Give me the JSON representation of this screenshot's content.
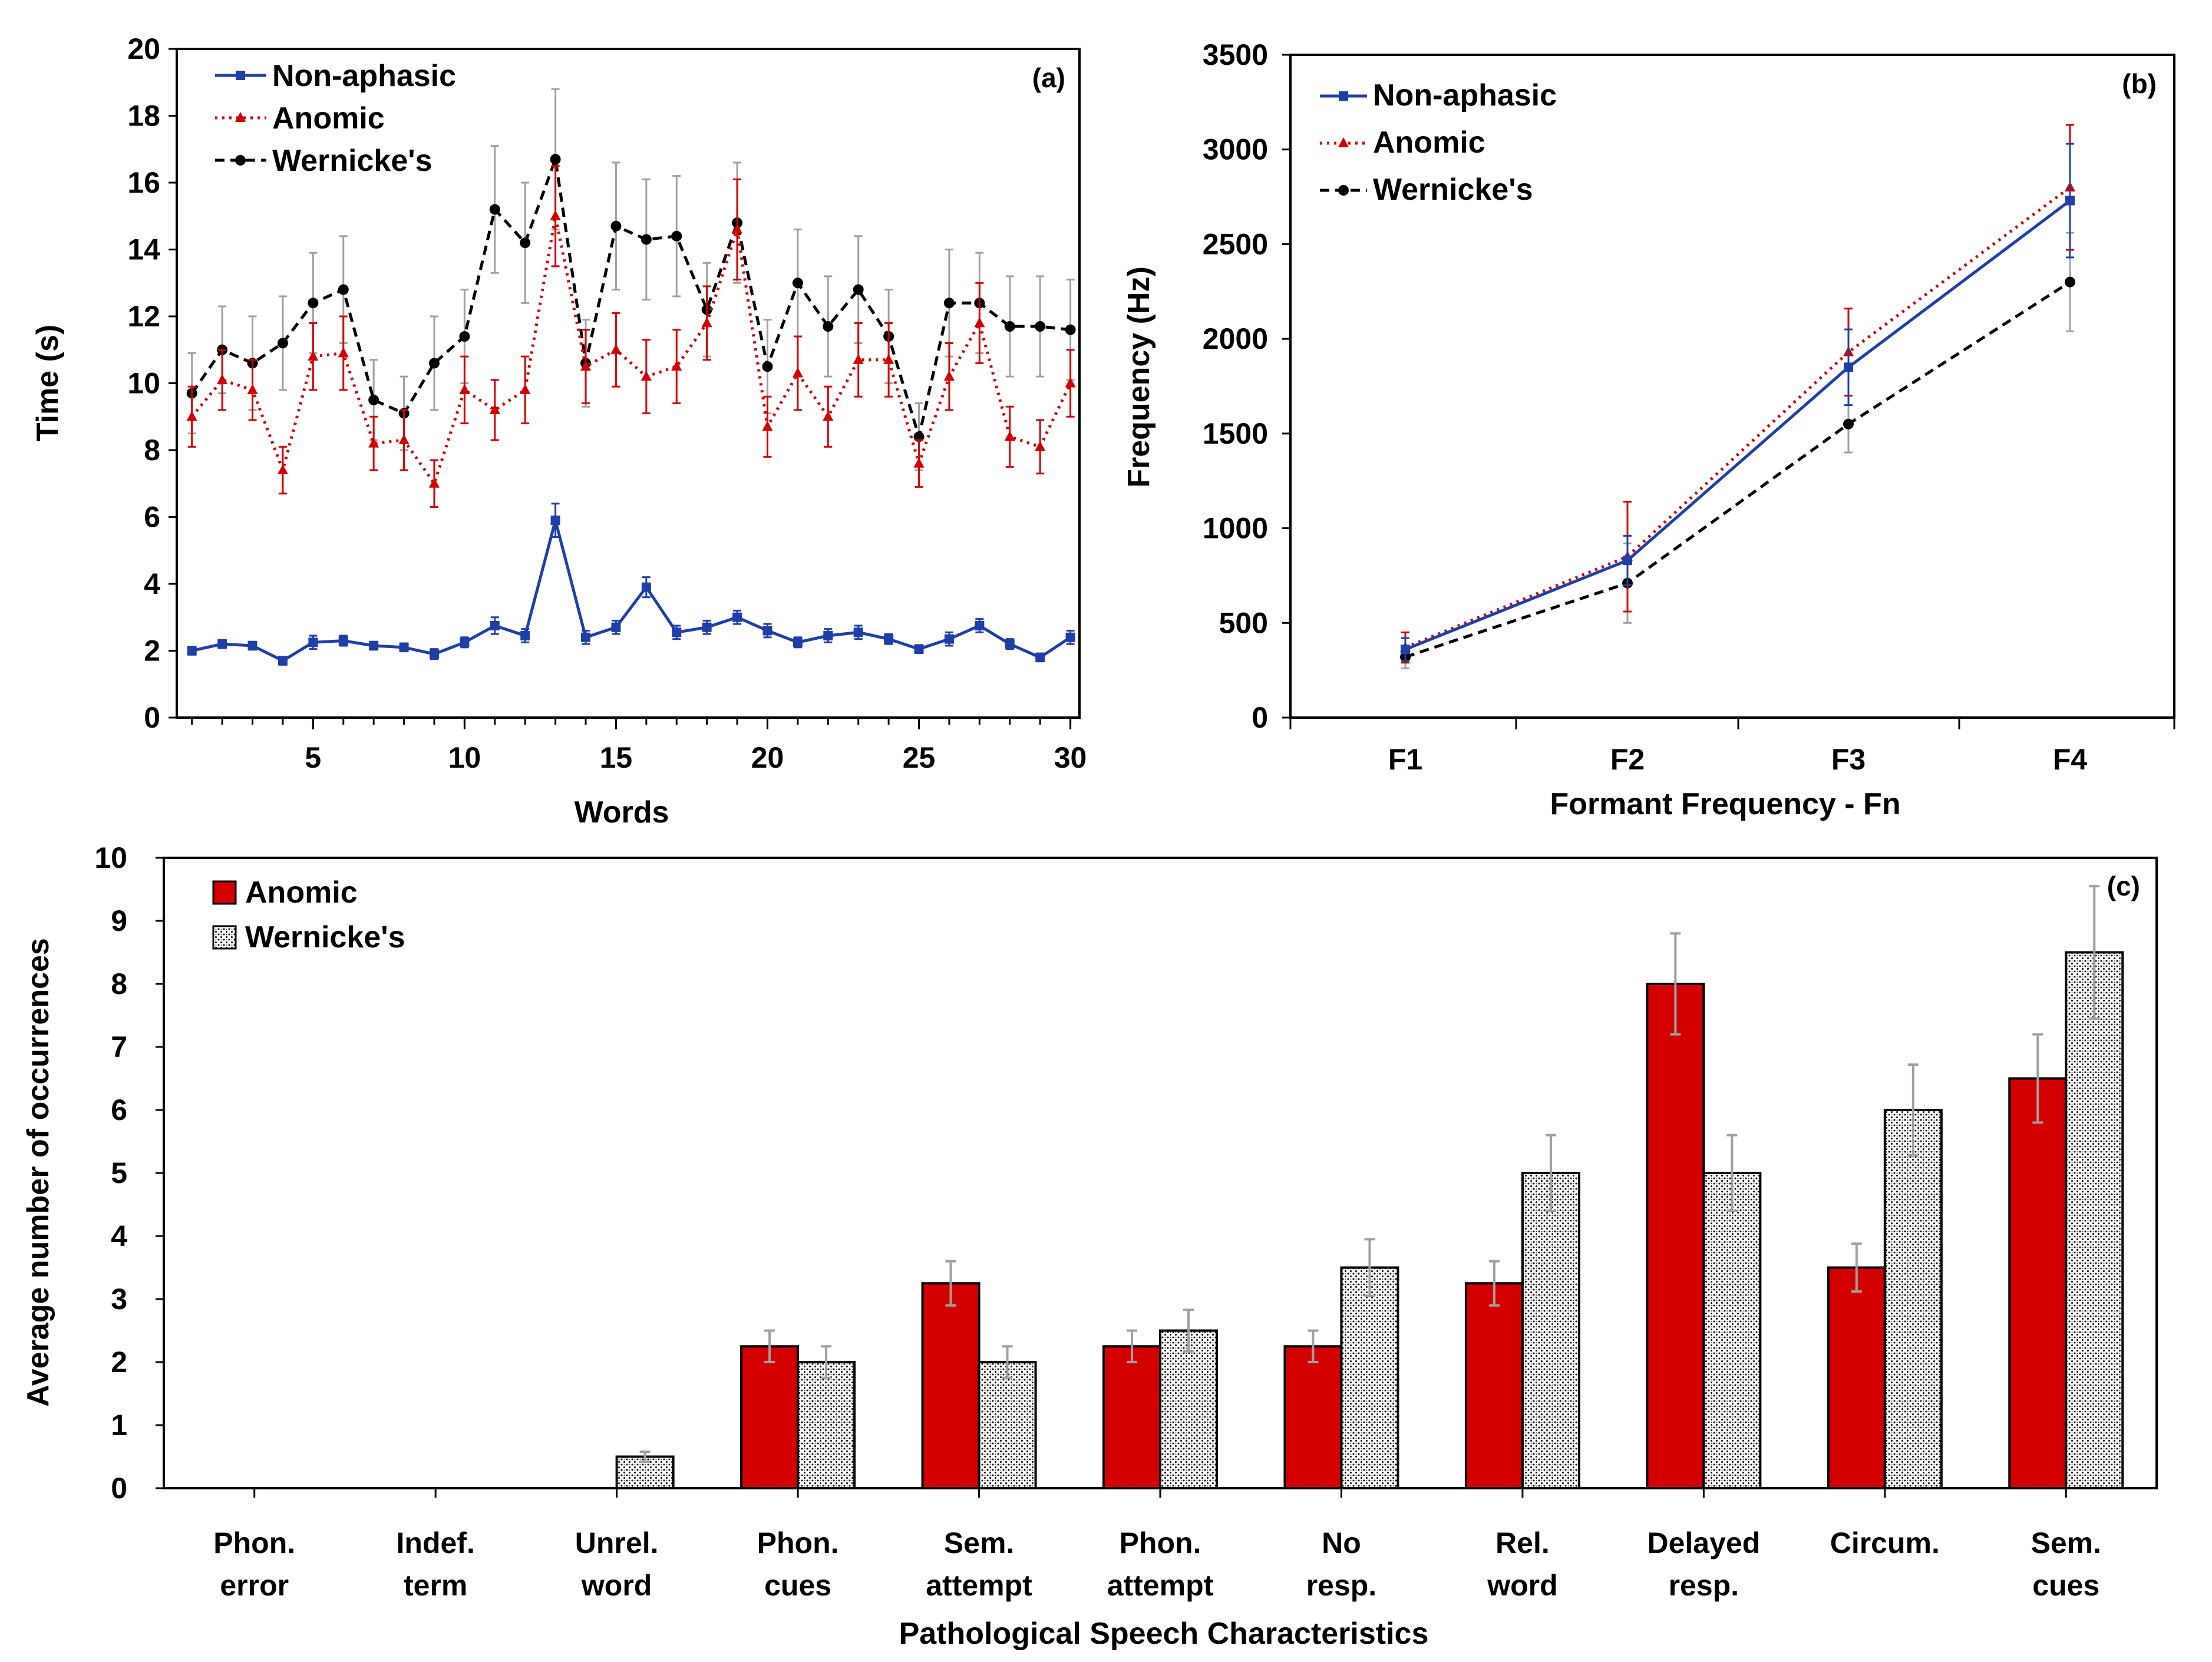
{
  "colors": {
    "non_aphasic": "#1f3fa8",
    "anomic": "#d40000",
    "wernickes": "#000000",
    "error_bar_gray": "#a0a0a0"
  },
  "chart_data": [
    {
      "id": "a",
      "type": "line",
      "panel_label": "(a)",
      "xlabel": "Words",
      "ylabel": "Time (s)",
      "xlim": [
        0.5,
        30.3
      ],
      "ylim": [
        0,
        20
      ],
      "xticks": [
        5,
        10,
        15,
        20,
        25,
        30
      ],
      "yticks": [
        0,
        2,
        4,
        6,
        8,
        10,
        12,
        14,
        16,
        18,
        20
      ],
      "legend": "top-left",
      "x": [
        1,
        2,
        3,
        4,
        5,
        6,
        7,
        8,
        9,
        10,
        11,
        12,
        13,
        14,
        15,
        16,
        17,
        18,
        19,
        20,
        21,
        22,
        23,
        24,
        25,
        26,
        27,
        28,
        29,
        30
      ],
      "series": [
        {
          "name": "Non-aphasic",
          "values": [
            2.0,
            2.2,
            2.15,
            1.7,
            2.25,
            2.3,
            2.15,
            2.1,
            1.9,
            2.25,
            2.75,
            2.45,
            5.9,
            2.4,
            2.7,
            3.9,
            2.55,
            2.7,
            3.0,
            2.6,
            2.25,
            2.45,
            2.55,
            2.35,
            2.05,
            2.35,
            2.75,
            2.2,
            1.8,
            2.4
          ],
          "errors": [
            0.12,
            0.12,
            0.12,
            0.12,
            0.2,
            0.15,
            0.12,
            0.12,
            0.15,
            0.15,
            0.25,
            0.2,
            0.5,
            0.2,
            0.2,
            0.3,
            0.2,
            0.2,
            0.2,
            0.2,
            0.15,
            0.2,
            0.2,
            0.15,
            0.12,
            0.2,
            0.2,
            0.15,
            0.12,
            0.2
          ]
        },
        {
          "name": "Anomic",
          "values": [
            9.0,
            10.1,
            9.8,
            7.4,
            10.8,
            10.9,
            8.2,
            8.3,
            7.0,
            9.8,
            9.2,
            9.8,
            15.0,
            10.5,
            11.0,
            10.2,
            10.5,
            11.8,
            14.6,
            8.7,
            10.3,
            9.0,
            10.7,
            10.7,
            7.6,
            10.2,
            11.8,
            8.4,
            8.1,
            10.0
          ],
          "errors": [
            0.9,
            0.9,
            0.9,
            0.7,
            1.0,
            1.1,
            0.8,
            0.9,
            0.7,
            1.0,
            0.9,
            1.0,
            1.5,
            1.1,
            1.1,
            1.1,
            1.1,
            1.1,
            1.5,
            0.9,
            1.1,
            0.9,
            1.1,
            1.1,
            0.7,
            1.0,
            1.2,
            0.9,
            0.8,
            1.0
          ]
        },
        {
          "name": "Wernicke's",
          "values": [
            9.7,
            11.0,
            10.6,
            11.2,
            12.4,
            12.8,
            9.5,
            9.1,
            10.6,
            11.4,
            15.2,
            14.2,
            16.7,
            10.6,
            14.7,
            14.3,
            14.4,
            12.2,
            14.8,
            10.5,
            13.0,
            11.7,
            12.8,
            11.4,
            8.4,
            12.4,
            12.4,
            11.7,
            11.7,
            11.6
          ],
          "errors": [
            1.2,
            1.3,
            1.4,
            1.4,
            1.5,
            1.6,
            1.2,
            1.1,
            1.4,
            1.4,
            1.9,
            1.8,
            2.1,
            1.3,
            1.9,
            1.8,
            1.8,
            1.4,
            1.8,
            1.4,
            1.6,
            1.5,
            1.6,
            1.4,
            1.0,
            1.6,
            1.5,
            1.5,
            1.5,
            1.5
          ]
        }
      ]
    },
    {
      "id": "b",
      "type": "line",
      "panel_label": "(b)",
      "xlabel": "Formant Frequency - Fn",
      "ylabel": "Frequency (Hz)",
      "categories": [
        "F1",
        "F2",
        "F3",
        "F4"
      ],
      "ylim": [
        0,
        3500
      ],
      "yticks": [
        0,
        500,
        1000,
        1500,
        2000,
        2500,
        3000,
        3500
      ],
      "legend": "top-left",
      "series": [
        {
          "name": "Non-aphasic",
          "values": [
            360,
            830,
            1850,
            2730
          ],
          "errors": [
            60,
            130,
            200,
            300
          ]
        },
        {
          "name": "Anomic",
          "values": [
            370,
            850,
            1930,
            2800
          ],
          "errors": [
            80,
            290,
            230,
            330
          ]
        },
        {
          "name": "Wernicke's",
          "values": [
            320,
            710,
            1550,
            2300
          ],
          "errors": [
            60,
            210,
            150,
            260
          ]
        }
      ]
    },
    {
      "id": "c",
      "type": "bar",
      "panel_label": "(c)",
      "xlabel": "Pathological Speech Characteristics",
      "ylabel": "Average number of occurrences",
      "ylim": [
        0,
        10
      ],
      "yticks": [
        0,
        1,
        2,
        3,
        4,
        5,
        6,
        7,
        8,
        9,
        10
      ],
      "legend": "top-left",
      "categories": [
        [
          "Phon.",
          "error"
        ],
        [
          "Indef.",
          "term"
        ],
        [
          "Unrel.",
          "word"
        ],
        [
          "Phon.",
          "cues"
        ],
        [
          "Sem.",
          "attempt"
        ],
        [
          "Phon.",
          "attempt"
        ],
        [
          "No",
          "resp."
        ],
        [
          "Rel.",
          "word"
        ],
        [
          "Delayed",
          "resp."
        ],
        [
          "Circum.",
          ""
        ],
        [
          "Sem.",
          "cues"
        ]
      ],
      "series": [
        {
          "name": "Anomic",
          "values": [
            0,
            0,
            0,
            2.25,
            3.25,
            2.25,
            2.25,
            3.25,
            8.0,
            3.5,
            6.5
          ],
          "errors": [
            0,
            0,
            0,
            0.25,
            0.35,
            0.25,
            0.25,
            0.35,
            0.8,
            0.38,
            0.7
          ]
        },
        {
          "name": "Wernicke's",
          "values": [
            0,
            0,
            0.5,
            2.0,
            2.0,
            2.5,
            3.5,
            5.0,
            5.0,
            6.0,
            8.5
          ],
          "errors": [
            0,
            0,
            0.08,
            0.25,
            0.25,
            0.33,
            0.45,
            0.6,
            0.6,
            0.72,
            1.05
          ]
        }
      ]
    }
  ]
}
